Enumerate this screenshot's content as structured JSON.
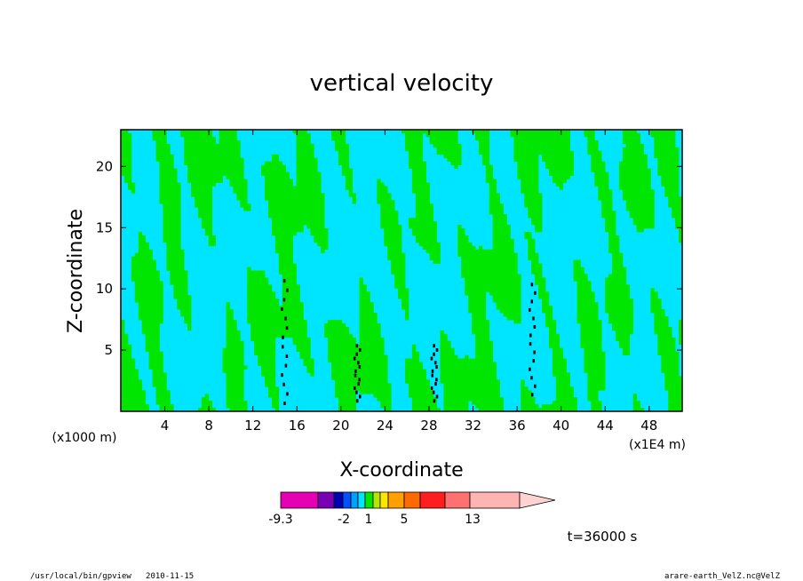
{
  "chart_data": {
    "type": "heatmap",
    "title": "vertical velocity",
    "xlabel": "X-coordinate",
    "ylabel": "Z-coordinate",
    "x_unit_left": "(x1000 m)",
    "x_unit_right": "(x1E4 m)",
    "xlim": [
      0,
      51
    ],
    "ylim": [
      0,
      23
    ],
    "x_ticks": [
      4,
      8,
      12,
      16,
      20,
      24,
      28,
      32,
      36,
      40,
      44,
      48
    ],
    "y_ticks": [
      5,
      10,
      15,
      20
    ],
    "colors": {
      "negative_small": "#00e5ff",
      "positive_small": "#00e600",
      "contour": "#000000",
      "strong": "#000000",
      "background": "#ffffff"
    },
    "colorbar": {
      "colors": [
        "#e600b4",
        "#7a00b4",
        "#0000b4",
        "#0050ff",
        "#00a0ff",
        "#00e5ff",
        "#00e600",
        "#b4e600",
        "#ffe600",
        "#ffa000",
        "#ff6a00",
        "#ff1e1e",
        "#ff7070",
        "#ffb4b4",
        "#ffd2d2"
      ],
      "tick_labels": [
        "-9.3",
        "-2",
        "1",
        "5",
        "13"
      ],
      "extend": "right"
    },
    "annotation": "t=36000 s"
  },
  "footer": {
    "left": "/usr/local/bin/gpview   2010-11-15",
    "right": "arare-earth_VelZ.nc@VelZ"
  }
}
